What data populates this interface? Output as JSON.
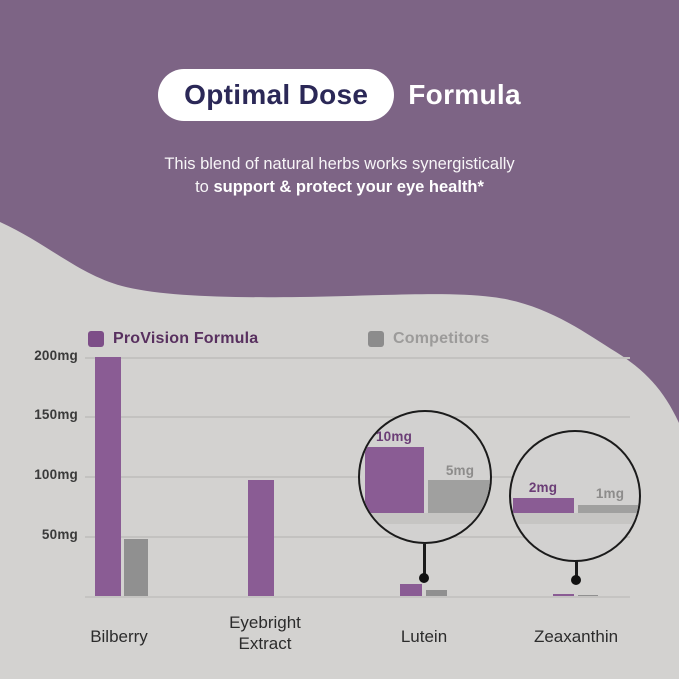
{
  "header": {
    "badge": "Optimal Dose",
    "title_suffix": "Formula",
    "subtitle_line1": "This blend of natural herbs works synergistically",
    "subtitle_line2_regular": "to",
    "subtitle_line2_bold": "support & protect your eye health*"
  },
  "legend": {
    "provision": "ProVision Formula",
    "competitors": "Competitors"
  },
  "colors": {
    "header_background": "#7d6485",
    "page_background": "#d3d2d0",
    "provision_purple": "#8a5c94",
    "competitor_gray": "#909090",
    "badge_text_navy": "#2b2857"
  },
  "chart_data": {
    "type": "bar",
    "categories": [
      "Bilberry",
      "Eyebright Extract",
      "Lutein",
      "Zeaxanthin"
    ],
    "series": [
      {
        "name": "ProVision Formula",
        "values": [
          200,
          97,
          10,
          2
        ]
      },
      {
        "name": "Competitors",
        "values": [
          48,
          0,
          5,
          1
        ]
      }
    ],
    "unit": "mg",
    "y_ticks": [
      "200mg",
      "150mg",
      "100mg",
      "50mg"
    ],
    "ylim": [
      0,
      200
    ],
    "grid": "horizontal",
    "legend_position": "top",
    "magnifiers": [
      {
        "category": "Lutein",
        "provision_label": "10mg",
        "competitor_label": "5mg"
      },
      {
        "category": "Zeaxanthin",
        "provision_label": "2mg",
        "competitor_label": "1mg"
      }
    ]
  }
}
